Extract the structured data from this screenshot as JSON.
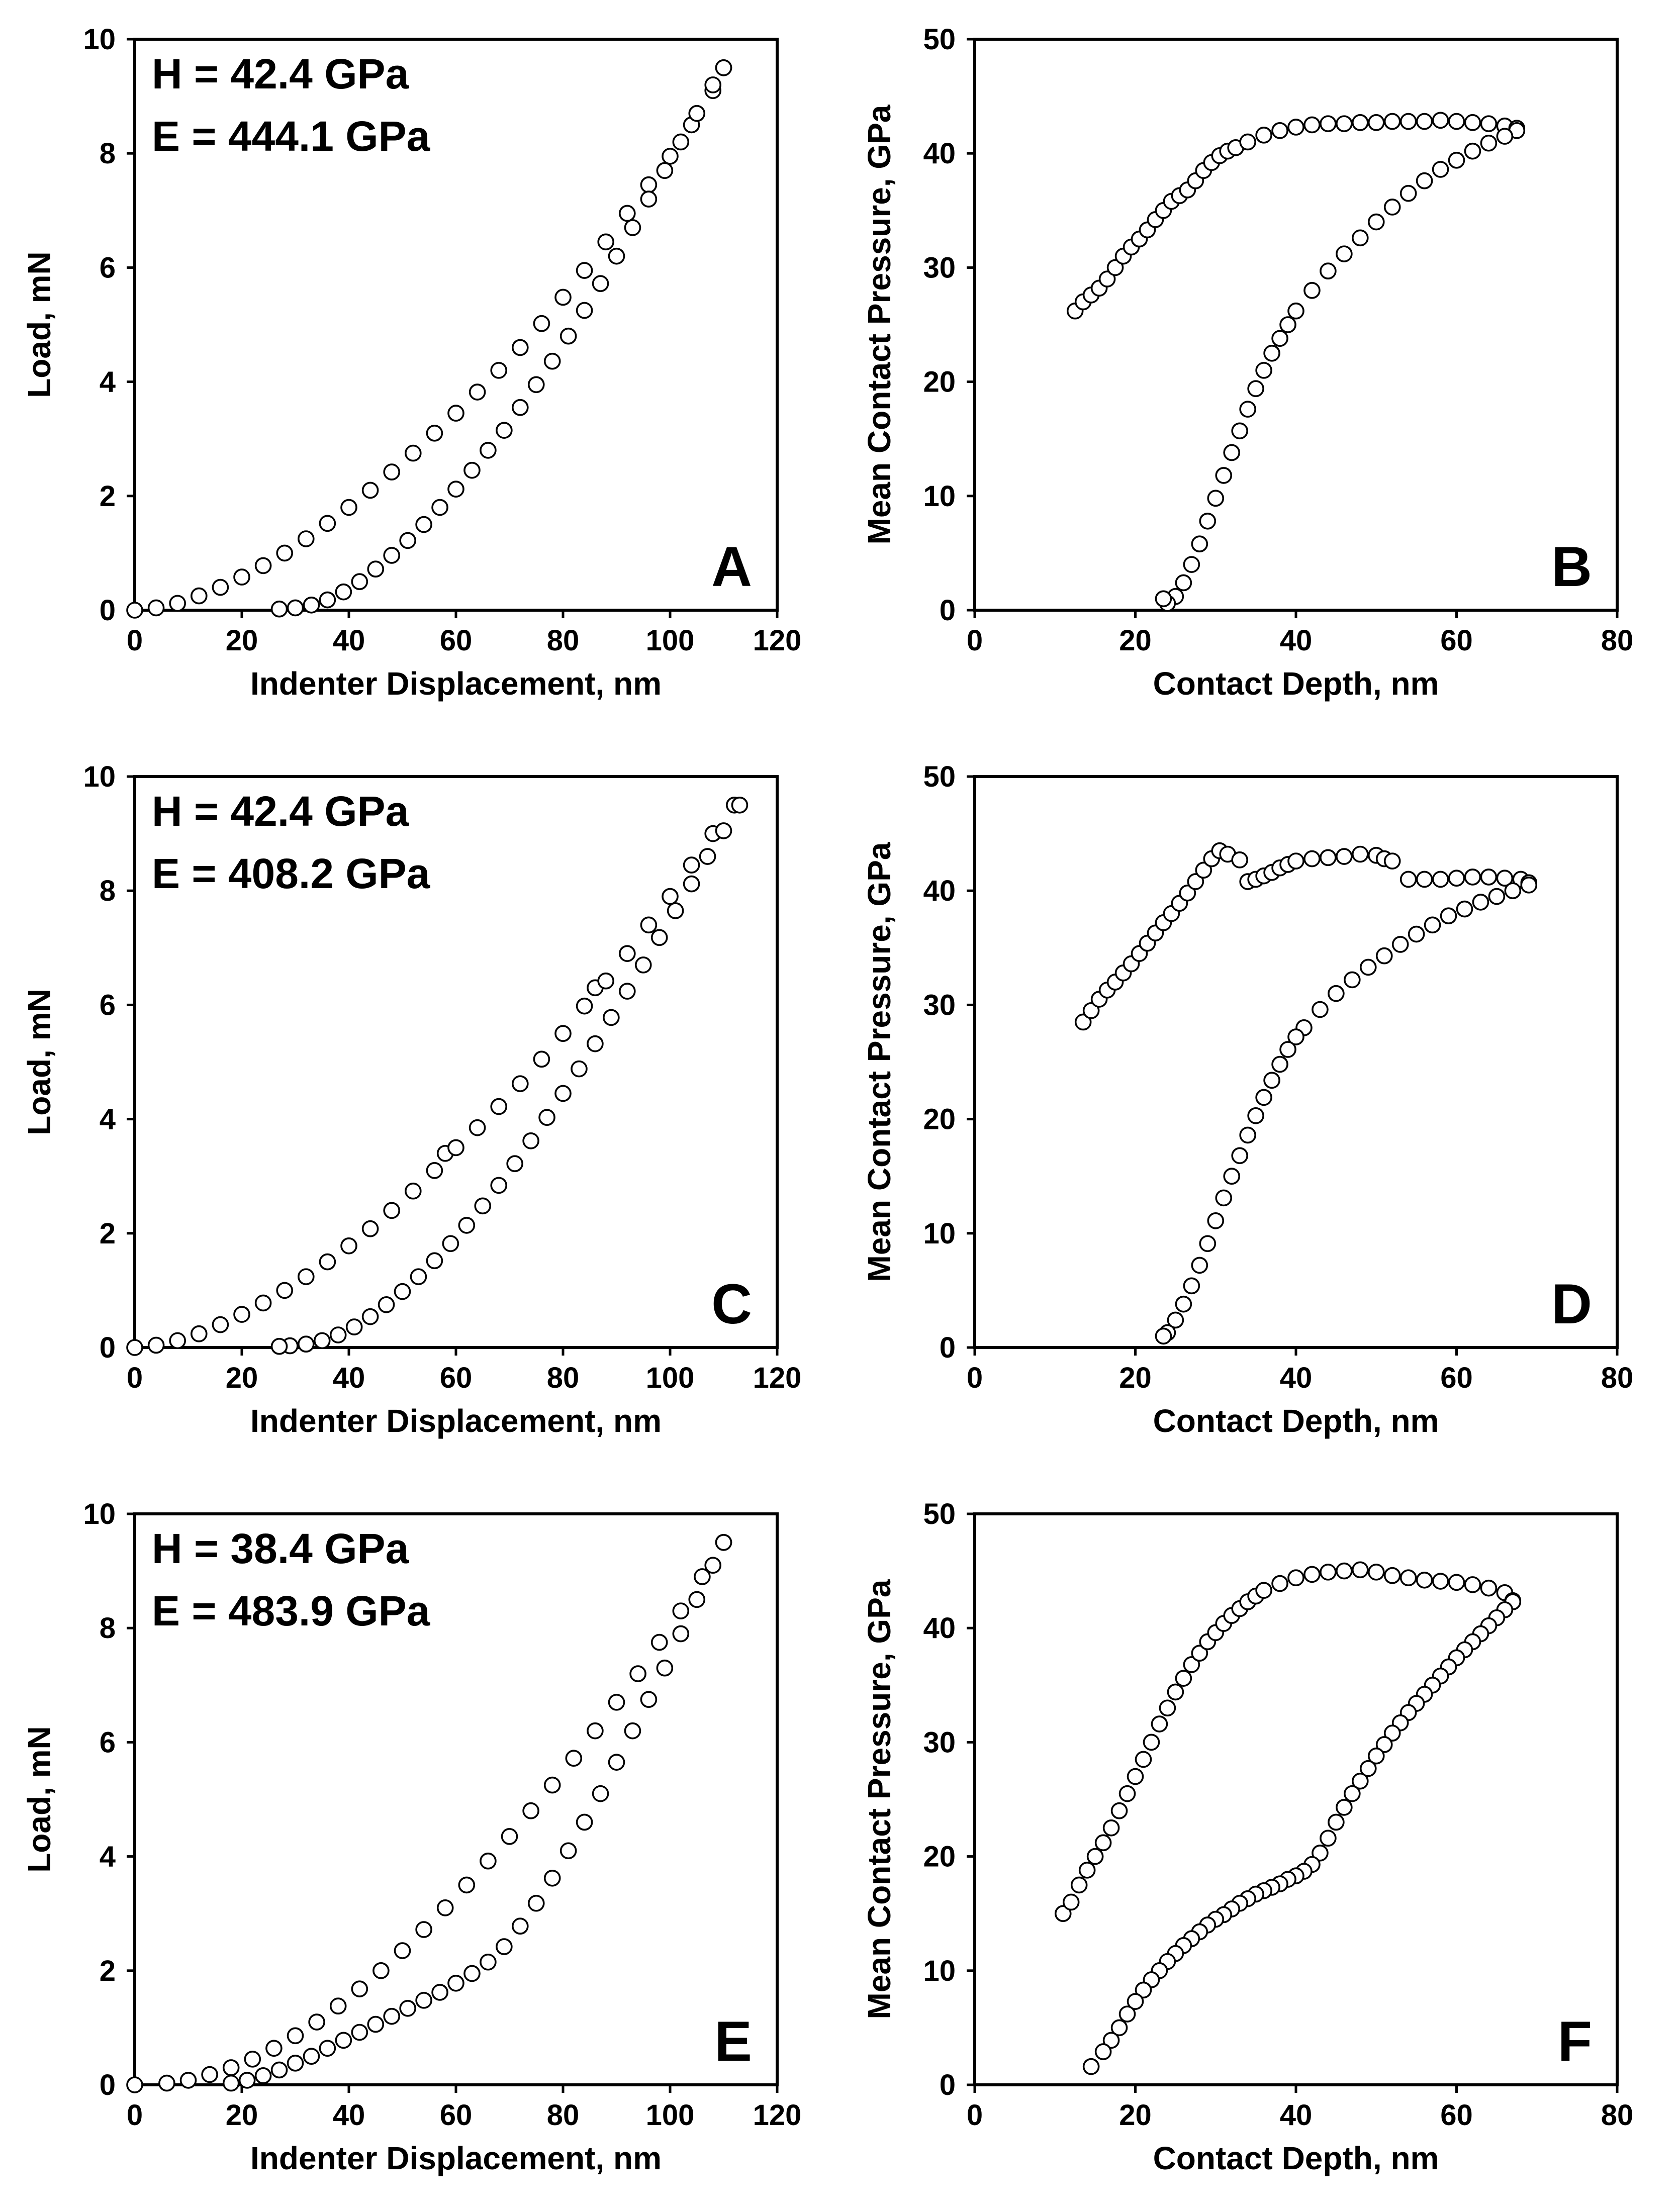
{
  "chart_data": [
    {
      "type": "scatter",
      "panel_label": "A",
      "xlabel": "Indenter Displacement, nm",
      "ylabel": "Load, mN",
      "xlim": [
        0,
        120
      ],
      "ylim": [
        0,
        10
      ],
      "xticks": [
        0,
        20,
        40,
        60,
        80,
        100,
        120
      ],
      "yticks": [
        0,
        2,
        4,
        6,
        8,
        10
      ],
      "annotations": [
        "H = 42.4 GPa",
        "E = 444.1 GPa"
      ],
      "series": [
        {
          "name": "loading",
          "x": [
            0,
            4,
            8,
            12,
            16,
            20,
            24,
            28,
            32,
            36,
            40,
            44,
            48,
            52,
            56,
            60,
            64,
            68,
            72,
            76,
            80,
            84,
            88,
            92,
            96,
            100,
            104,
            108,
            110
          ],
          "y": [
            0,
            0.04,
            0.12,
            0.25,
            0.4,
            0.58,
            0.78,
            1.0,
            1.25,
            1.52,
            1.8,
            2.1,
            2.42,
            2.75,
            3.1,
            3.45,
            3.82,
            4.2,
            4.6,
            5.02,
            5.48,
            5.95,
            6.45,
            6.95,
            7.45,
            7.95,
            8.5,
            9.1,
            9.5
          ]
        },
        {
          "name": "unloading",
          "x": [
            110,
            108,
            105,
            102,
            99,
            96,
            93,
            90,
            87,
            84,
            81,
            78,
            75,
            72,
            69,
            66,
            63,
            60,
            57,
            54,
            51,
            48,
            45,
            42,
            39,
            36,
            33,
            30,
            27
          ],
          "y": [
            9.5,
            9.2,
            8.7,
            8.2,
            7.7,
            7.2,
            6.7,
            6.2,
            5.72,
            5.25,
            4.8,
            4.36,
            3.95,
            3.55,
            3.15,
            2.8,
            2.45,
            2.12,
            1.8,
            1.5,
            1.22,
            0.96,
            0.72,
            0.5,
            0.32,
            0.18,
            0.09,
            0.04,
            0.02
          ]
        }
      ]
    },
    {
      "type": "scatter",
      "panel_label": "B",
      "xlabel": "Contact Depth, nm",
      "ylabel": "Mean Contact Pressure, GPa",
      "xlim": [
        0,
        80
      ],
      "ylim": [
        0,
        50
      ],
      "xticks": [
        0,
        20,
        40,
        60,
        80
      ],
      "yticks": [
        0,
        10,
        20,
        30,
        40,
        50
      ],
      "annotations": [],
      "series": [
        {
          "name": "loading",
          "x": [
            12.5,
            13.5,
            14.5,
            15.5,
            16.5,
            17.5,
            18.5,
            19.5,
            20.5,
            21.5,
            22.5,
            23.5,
            24.5,
            25.5,
            26.5,
            27.5,
            28.5,
            29.5,
            30.5,
            31.5,
            32.5,
            34,
            36,
            38,
            40,
            42,
            44,
            46,
            48,
            50,
            52,
            54,
            56,
            58,
            60,
            62,
            64,
            66,
            67.5
          ],
          "y": [
            26.2,
            27,
            27.6,
            28.2,
            29,
            30,
            31,
            31.8,
            32.5,
            33.3,
            34.2,
            35,
            35.8,
            36.3,
            36.8,
            37.6,
            38.5,
            39.2,
            39.8,
            40.2,
            40.5,
            41,
            41.6,
            42,
            42.3,
            42.5,
            42.6,
            42.6,
            42.7,
            42.7,
            42.8,
            42.8,
            42.8,
            42.9,
            42.8,
            42.7,
            42.6,
            42.4,
            42.2
          ]
        },
        {
          "name": "unloading",
          "x": [
            67.5,
            66,
            64,
            62,
            60,
            58,
            56,
            54,
            52,
            50,
            48,
            46,
            44,
            42,
            40,
            39,
            38,
            37,
            36,
            35,
            34,
            33,
            32,
            31,
            30,
            29,
            28,
            27,
            26,
            25,
            24,
            23.5
          ],
          "y": [
            42,
            41.5,
            40.9,
            40.2,
            39.4,
            38.6,
            37.6,
            36.5,
            35.3,
            34,
            32.6,
            31.2,
            29.7,
            28,
            26.2,
            25,
            23.8,
            22.5,
            21,
            19.4,
            17.6,
            15.7,
            13.8,
            11.8,
            9.8,
            7.8,
            5.8,
            4,
            2.4,
            1.2,
            0.6,
            1
          ]
        }
      ]
    },
    {
      "type": "scatter",
      "panel_label": "C",
      "xlabel": "Indenter Displacement, nm",
      "ylabel": "Load, mN",
      "xlim": [
        0,
        120
      ],
      "ylim": [
        0,
        10
      ],
      "xticks": [
        0,
        20,
        40,
        60,
        80,
        100,
        120
      ],
      "yticks": [
        0,
        2,
        4,
        6,
        8,
        10
      ],
      "annotations": [
        "H = 42.4 GPa",
        "E = 408.2 GPa"
      ],
      "series": [
        {
          "name": "loading",
          "x": [
            0,
            4,
            8,
            12,
            16,
            20,
            24,
            28,
            32,
            36,
            40,
            44,
            48,
            52,
            56,
            58,
            60,
            64,
            68,
            72,
            76,
            80,
            84,
            86,
            88,
            92,
            96,
            100,
            104,
            108,
            112
          ],
          "y": [
            0,
            0.04,
            0.12,
            0.24,
            0.4,
            0.58,
            0.78,
            1.0,
            1.24,
            1.5,
            1.78,
            2.08,
            2.4,
            2.74,
            3.1,
            3.4,
            3.5,
            3.85,
            4.22,
            4.62,
            5.05,
            5.5,
            5.98,
            6.3,
            6.42,
            6.9,
            7.4,
            7.9,
            8.45,
            9.0,
            9.5
          ]
        },
        {
          "name": "unloading",
          "x": [
            113,
            110,
            107,
            104,
            101,
            98,
            95,
            92,
            89,
            86,
            83,
            80,
            77,
            74,
            71,
            68,
            65,
            62,
            59,
            56,
            53,
            50,
            47,
            44,
            41,
            38,
            35,
            32,
            29,
            27
          ],
          "y": [
            9.5,
            9.05,
            8.6,
            8.12,
            7.65,
            7.18,
            6.7,
            6.24,
            5.78,
            5.32,
            4.88,
            4.45,
            4.03,
            3.62,
            3.22,
            2.84,
            2.48,
            2.14,
            1.82,
            1.52,
            1.24,
            0.98,
            0.75,
            0.54,
            0.36,
            0.22,
            0.12,
            0.06,
            0.03,
            0.02
          ]
        }
      ]
    },
    {
      "type": "scatter",
      "panel_label": "D",
      "xlabel": "Contact Depth, nm",
      "ylabel": "Mean Contact Pressure, GPa",
      "xlim": [
        0,
        80
      ],
      "ylim": [
        0,
        50
      ],
      "xticks": [
        0,
        20,
        40,
        60,
        80
      ],
      "yticks": [
        0,
        10,
        20,
        30,
        40,
        50
      ],
      "annotations": [],
      "series": [
        {
          "name": "loading",
          "x": [
            13.5,
            14.5,
            15.5,
            16.5,
            17.5,
            18.5,
            19.5,
            20.5,
            21.5,
            22.5,
            23.5,
            24.5,
            25.5,
            26.5,
            27.5,
            28.5,
            29.5,
            30.5,
            31.5,
            33,
            34,
            35,
            36,
            37,
            38,
            39,
            40,
            42,
            44,
            46,
            48,
            50,
            51,
            52,
            54,
            56,
            58,
            60,
            62,
            64,
            66,
            68,
            69
          ],
          "y": [
            28.5,
            29.5,
            30.5,
            31.3,
            32,
            32.8,
            33.6,
            34.5,
            35.4,
            36.3,
            37.2,
            38,
            38.9,
            39.8,
            40.8,
            41.8,
            42.8,
            43.5,
            43.2,
            42.7,
            40.8,
            41,
            41.3,
            41.6,
            42,
            42.3,
            42.6,
            42.8,
            42.9,
            43,
            43.2,
            43.1,
            42.8,
            42.6,
            41,
            41,
            41,
            41.1,
            41.2,
            41.2,
            41.1,
            41,
            40.7
          ]
        },
        {
          "name": "unloading",
          "x": [
            69,
            67,
            65,
            63,
            61,
            59,
            57,
            55,
            53,
            51,
            49,
            47,
            45,
            43,
            41,
            40,
            39,
            38,
            37,
            36,
            35,
            34,
            33,
            32,
            31,
            30,
            29,
            28,
            27,
            26,
            25,
            24,
            23.5
          ],
          "y": [
            40.5,
            40,
            39.5,
            39,
            38.4,
            37.8,
            37,
            36.2,
            35.3,
            34.3,
            33.3,
            32.2,
            31,
            29.6,
            28,
            27.2,
            26.1,
            24.8,
            23.4,
            21.9,
            20.3,
            18.6,
            16.8,
            15,
            13.1,
            11.1,
            9.1,
            7.2,
            5.4,
            3.8,
            2.4,
            1.3,
            1
          ]
        }
      ]
    },
    {
      "type": "scatter",
      "panel_label": "E",
      "xlabel": "Indenter Displacement, nm",
      "ylabel": "Load, mN",
      "xlim": [
        0,
        120
      ],
      "ylim": [
        0,
        10
      ],
      "xticks": [
        0,
        20,
        40,
        60,
        80,
        100,
        120
      ],
      "yticks": [
        0,
        2,
        4,
        6,
        8,
        10
      ],
      "annotations": [
        "H = 38.4 GPa",
        "E = 483.9 GPa"
      ],
      "series": [
        {
          "name": "loading",
          "x": [
            0,
            6,
            10,
            14,
            18,
            22,
            26,
            30,
            34,
            38,
            42,
            46,
            50,
            54,
            58,
            62,
            66,
            70,
            74,
            78,
            82,
            86,
            90,
            94,
            98,
            102,
            106,
            110
          ],
          "y": [
            0,
            0.03,
            0.08,
            0.18,
            0.3,
            0.45,
            0.64,
            0.86,
            1.1,
            1.38,
            1.68,
            2.0,
            2.35,
            2.72,
            3.1,
            3.5,
            3.92,
            4.35,
            4.8,
            5.25,
            5.72,
            6.2,
            6.7,
            7.2,
            7.75,
            8.3,
            8.9,
            9.5
          ]
        },
        {
          "name": "unloading",
          "x": [
            110,
            108,
            105,
            102,
            99,
            96,
            93,
            90,
            87,
            84,
            81,
            78,
            75,
            72,
            69,
            66,
            63,
            60,
            57,
            54,
            51,
            48,
            45,
            42,
            39,
            36,
            33,
            30,
            27,
            24,
            21,
            18
          ],
          "y": [
            9.5,
            9.1,
            8.5,
            7.9,
            7.3,
            6.75,
            6.2,
            5.65,
            5.1,
            4.6,
            4.1,
            3.62,
            3.18,
            2.78,
            2.42,
            2.15,
            1.95,
            1.78,
            1.62,
            1.48,
            1.34,
            1.2,
            1.06,
            0.92,
            0.78,
            0.64,
            0.5,
            0.38,
            0.26,
            0.16,
            0.08,
            0.03
          ]
        }
      ]
    },
    {
      "type": "scatter",
      "panel_label": "F",
      "xlabel": "Contact Depth, nm",
      "ylabel": "Mean Contact Pressure, GPa",
      "xlim": [
        0,
        80
      ],
      "ylim": [
        0,
        50
      ],
      "xticks": [
        0,
        20,
        40,
        60,
        80
      ],
      "yticks": [
        0,
        10,
        20,
        30,
        40,
        50
      ],
      "annotations": [],
      "series": [
        {
          "name": "loading",
          "x": [
            11,
            12,
            13,
            14,
            15,
            16,
            17,
            18,
            19,
            20,
            21,
            22,
            23,
            24,
            25,
            26,
            27,
            28,
            29,
            30,
            31,
            32,
            33,
            34,
            35,
            36,
            38,
            40,
            42,
            44,
            46,
            48,
            50,
            52,
            54,
            56,
            58,
            60,
            62,
            64,
            66,
            67
          ],
          "y": [
            15,
            16,
            17.5,
            18.8,
            20,
            21.2,
            22.5,
            24,
            25.5,
            27,
            28.5,
            30,
            31.6,
            33,
            34.4,
            35.6,
            36.8,
            37.8,
            38.8,
            39.6,
            40.4,
            41.1,
            41.7,
            42.3,
            42.8,
            43.3,
            43.9,
            44.4,
            44.7,
            44.9,
            45,
            45.1,
            44.9,
            44.6,
            44.4,
            44.2,
            44.1,
            44,
            43.8,
            43.5,
            43.1,
            42.4
          ]
        },
        {
          "name": "unloading",
          "x": [
            67,
            66,
            65,
            64,
            63,
            62,
            61,
            60,
            59,
            58,
            57,
            56,
            55,
            54,
            53,
            52,
            51,
            50,
            49,
            48,
            47,
            46,
            45,
            44,
            43,
            42,
            41,
            40,
            39,
            38,
            37,
            36,
            35,
            34,
            33,
            32,
            31,
            30,
            29,
            28,
            27,
            26,
            25,
            24,
            23,
            22,
            21,
            20,
            19,
            18,
            17,
            16,
            14.5
          ],
          "y": [
            42.3,
            41.6,
            40.9,
            40.2,
            39.5,
            38.8,
            38.1,
            37.4,
            36.6,
            35.8,
            35,
            34.2,
            33.4,
            32.6,
            31.7,
            30.8,
            29.8,
            28.8,
            27.7,
            26.6,
            25.5,
            24.3,
            23,
            21.6,
            20.3,
            19.3,
            18.7,
            18.3,
            18,
            17.6,
            17.3,
            17,
            16.7,
            16.3,
            15.9,
            15.4,
            14.9,
            14.5,
            14,
            13.4,
            12.8,
            12.2,
            11.5,
            10.8,
            10,
            9.2,
            8.3,
            7.3,
            6.2,
            5,
            3.9,
            2.9,
            1.6
          ]
        }
      ]
    }
  ]
}
